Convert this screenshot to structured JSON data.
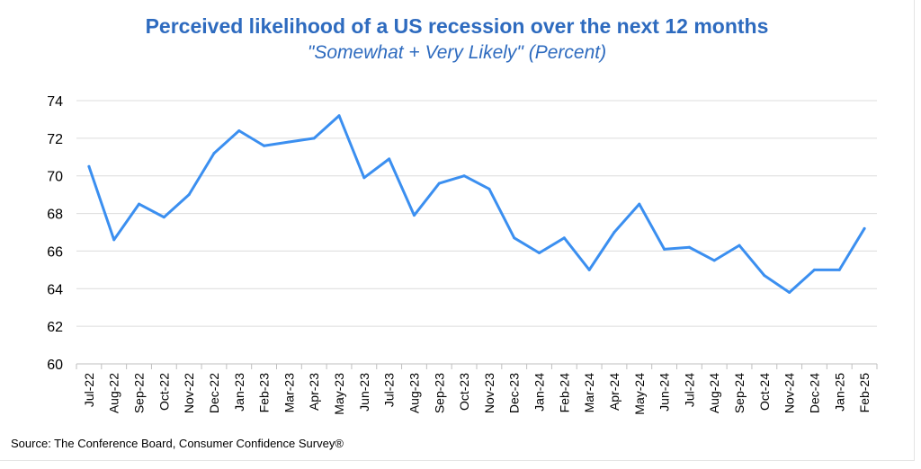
{
  "chart_data": {
    "type": "line",
    "title": "Perceived likelihood of a US recession over the next 12 months",
    "subtitle": "\"Somewhat + Very Likely\" (Percent)",
    "xlabel": "",
    "ylabel": "",
    "ylim": [
      60,
      74
    ],
    "yticks": [
      60,
      62,
      64,
      66,
      68,
      70,
      72,
      74
    ],
    "grid": "horizontal",
    "line_color": "#3b8ff0",
    "categories": [
      "Jul-22",
      "Aug-22",
      "Sep-22",
      "Oct-22",
      "Nov-22",
      "Dec-22",
      "Jan-23",
      "Feb-23",
      "Mar-23",
      "Apr-23",
      "May-23",
      "Jun-23",
      "Jul-23",
      "Aug-23",
      "Sep-23",
      "Oct-23",
      "Nov-23",
      "Dec-23",
      "Jan-24",
      "Feb-24",
      "Mar-24",
      "Apr-24",
      "May-24",
      "Jun-24",
      "Jul-24",
      "Aug-24",
      "Sep-24",
      "Oct-24",
      "Nov-24",
      "Dec-24",
      "Jan-25",
      "Feb-25"
    ],
    "series": [
      {
        "values": [
          70.5,
          66.6,
          68.5,
          67.8,
          69.0,
          71.2,
          72.4,
          71.6,
          71.8,
          72.0,
          73.2,
          69.9,
          70.9,
          67.9,
          69.6,
          70.0,
          69.3,
          66.7,
          65.9,
          66.7,
          65.0,
          67.0,
          68.5,
          66.1,
          66.2,
          65.5,
          66.3,
          64.7,
          63.8,
          65.0,
          65.0,
          67.2
        ]
      }
    ]
  },
  "source": "Source: The Conference Board, Consumer Confidence   Survey®"
}
